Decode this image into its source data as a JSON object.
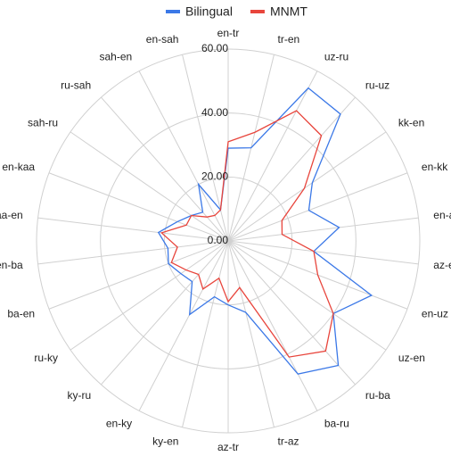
{
  "chart_data": {
    "type": "radar",
    "categories": [
      "en-tr",
      "tr-en",
      "uz-ru",
      "ru-uz",
      "kk-en",
      "en-kk",
      "en-az",
      "az-en",
      "en-uz",
      "uz-en",
      "ru-ba",
      "ba-ru",
      "tr-az",
      "az-tr",
      "ky-en",
      "en-ky",
      "ky-ru",
      "ru-ky",
      "ba-en",
      "en-ba",
      "kaa-en",
      "en-kaa",
      "sah-ru",
      "ru-sah",
      "sah-en",
      "en-sah"
    ],
    "series": [
      {
        "name": "Bilingual",
        "color": "#3b78e7",
        "values": [
          29,
          30,
          54,
          53,
          32,
          27,
          35,
          27,
          48,
          40,
          52,
          47,
          23,
          20,
          18,
          26,
          17,
          18,
          20,
          19,
          22,
          17,
          14,
          12,
          20,
          10
        ]
      },
      {
        "name": "MNMT",
        "color": "#e8453c",
        "values": [
          31,
          35,
          46,
          44,
          29,
          18,
          17,
          27,
          30,
          40,
          46,
          41,
          15,
          19,
          12,
          17,
          14,
          16,
          19,
          16,
          21,
          14,
          14,
          10,
          9,
          10
        ]
      }
    ],
    "ylim": [
      0,
      60
    ],
    "yticks": [
      {
        "value": 0,
        "label": "0.00"
      },
      {
        "value": 20,
        "label": "20.00"
      },
      {
        "value": 40,
        "label": "40.00"
      },
      {
        "value": 60,
        "label": "60.00"
      }
    ],
    "grid": true,
    "legend": "top"
  }
}
